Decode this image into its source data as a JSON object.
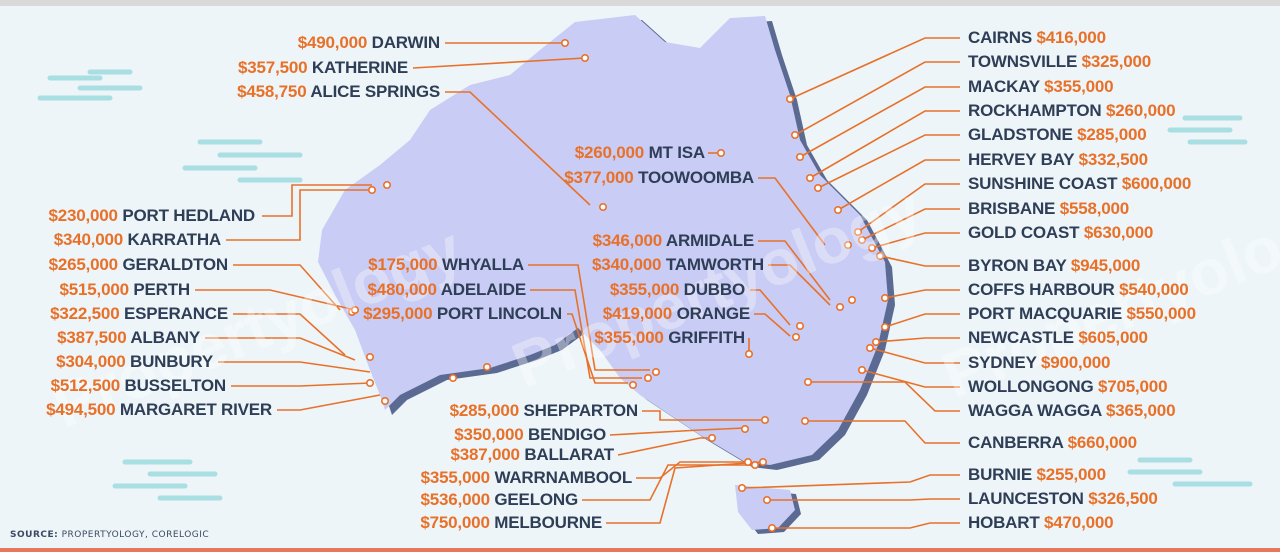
{
  "watermark": "Propertyology",
  "source": {
    "label": "SOURCE:",
    "text": "PROPERTYOLOGY, CORELOGIC"
  },
  "colors": {
    "price": "#e8712a",
    "name": "#2f3e57",
    "land": "#c9ccf4",
    "background": "#eef5f8"
  },
  "left_labels": [
    {
      "price": "$490,000",
      "name": "DARWIN"
    },
    {
      "price": "$357,500",
      "name": "KATHERINE"
    },
    {
      "price": "$458,750",
      "name": "ALICE SPRINGS"
    },
    {
      "price": "$230,000",
      "name": "PORT HEDLAND"
    },
    {
      "price": "$340,000",
      "name": "KARRATHA"
    },
    {
      "price": "$265,000",
      "name": "GERALDTON"
    },
    {
      "price": "$515,000",
      "name": "PERTH"
    },
    {
      "price": "$322,500",
      "name": "ESPERANCE"
    },
    {
      "price": "$387,500",
      "name": "ALBANY"
    },
    {
      "price": "$304,000",
      "name": "BUNBURY"
    },
    {
      "price": "$512,500",
      "name": "BUSSELTON"
    },
    {
      "price": "$494,500",
      "name": "MARGARET RIVER"
    }
  ],
  "sa_labels": [
    {
      "price": "$175,000",
      "name": "WHYALLA"
    },
    {
      "price": "$480,000",
      "name": "ADELAIDE"
    },
    {
      "price": "$295,000",
      "name": "PORT LINCOLN"
    }
  ],
  "inland_labels": [
    {
      "price": "$260,000",
      "name": "MT ISA"
    },
    {
      "price": "$377,000",
      "name": "TOOWOOMBA"
    },
    {
      "price": "$346,000",
      "name": "ARMIDALE"
    },
    {
      "price": "$340,000",
      "name": "TAMWORTH"
    },
    {
      "price": "$355,000",
      "name": "DUBBO"
    },
    {
      "price": "$419,000",
      "name": "ORANGE"
    },
    {
      "price": "$355,000",
      "name": "GRIFFITH"
    }
  ],
  "vic_labels": [
    {
      "price": "$285,000",
      "name": "SHEPPARTON"
    },
    {
      "price": "$350,000",
      "name": "BENDIGO"
    },
    {
      "price": "$387,000",
      "name": "BALLARAT"
    },
    {
      "price": "$355,000",
      "name": "WARRNAMBOOL"
    },
    {
      "price": "$536,000",
      "name": "GEELONG"
    },
    {
      "price": "$750,000",
      "name": "MELBOURNE"
    }
  ],
  "right_labels": [
    {
      "name": "CAIRNS",
      "price": "$416,000"
    },
    {
      "name": "TOWNSVILLE",
      "price": "$325,000"
    },
    {
      "name": "MACKAY",
      "price": "$355,000"
    },
    {
      "name": "ROCKHAMPTON",
      "price": "$260,000"
    },
    {
      "name": "GLADSTONE",
      "price": "$285,000"
    },
    {
      "name": "HERVEY BAY",
      "price": "$332,500"
    },
    {
      "name": "SUNSHINE COAST",
      "price": "$600,000"
    },
    {
      "name": "BRISBANE",
      "price": "$558,000"
    },
    {
      "name": "GOLD COAST",
      "price": "$630,000"
    },
    {
      "name": "BYRON BAY",
      "price": "$945,000"
    },
    {
      "name": "COFFS HARBOUR",
      "price": "$540,000"
    },
    {
      "name": "PORT MACQUARIE",
      "price": "$550,000"
    },
    {
      "name": "NEWCASTLE",
      "price": "$605,000"
    },
    {
      "name": "SYDNEY",
      "price": "$900,000"
    },
    {
      "name": "WOLLONGONG",
      "price": "$705,000"
    },
    {
      "name": "WAGGA WAGGA",
      "price": "$365,000"
    },
    {
      "name": "CANBERRA",
      "price": "$660,000"
    },
    {
      "name": "BURNIE",
      "price": "$255,000"
    },
    {
      "name": "LAUNCESTON",
      "price": "$326,500"
    },
    {
      "name": "HOBART",
      "price": "$470,000"
    }
  ]
}
